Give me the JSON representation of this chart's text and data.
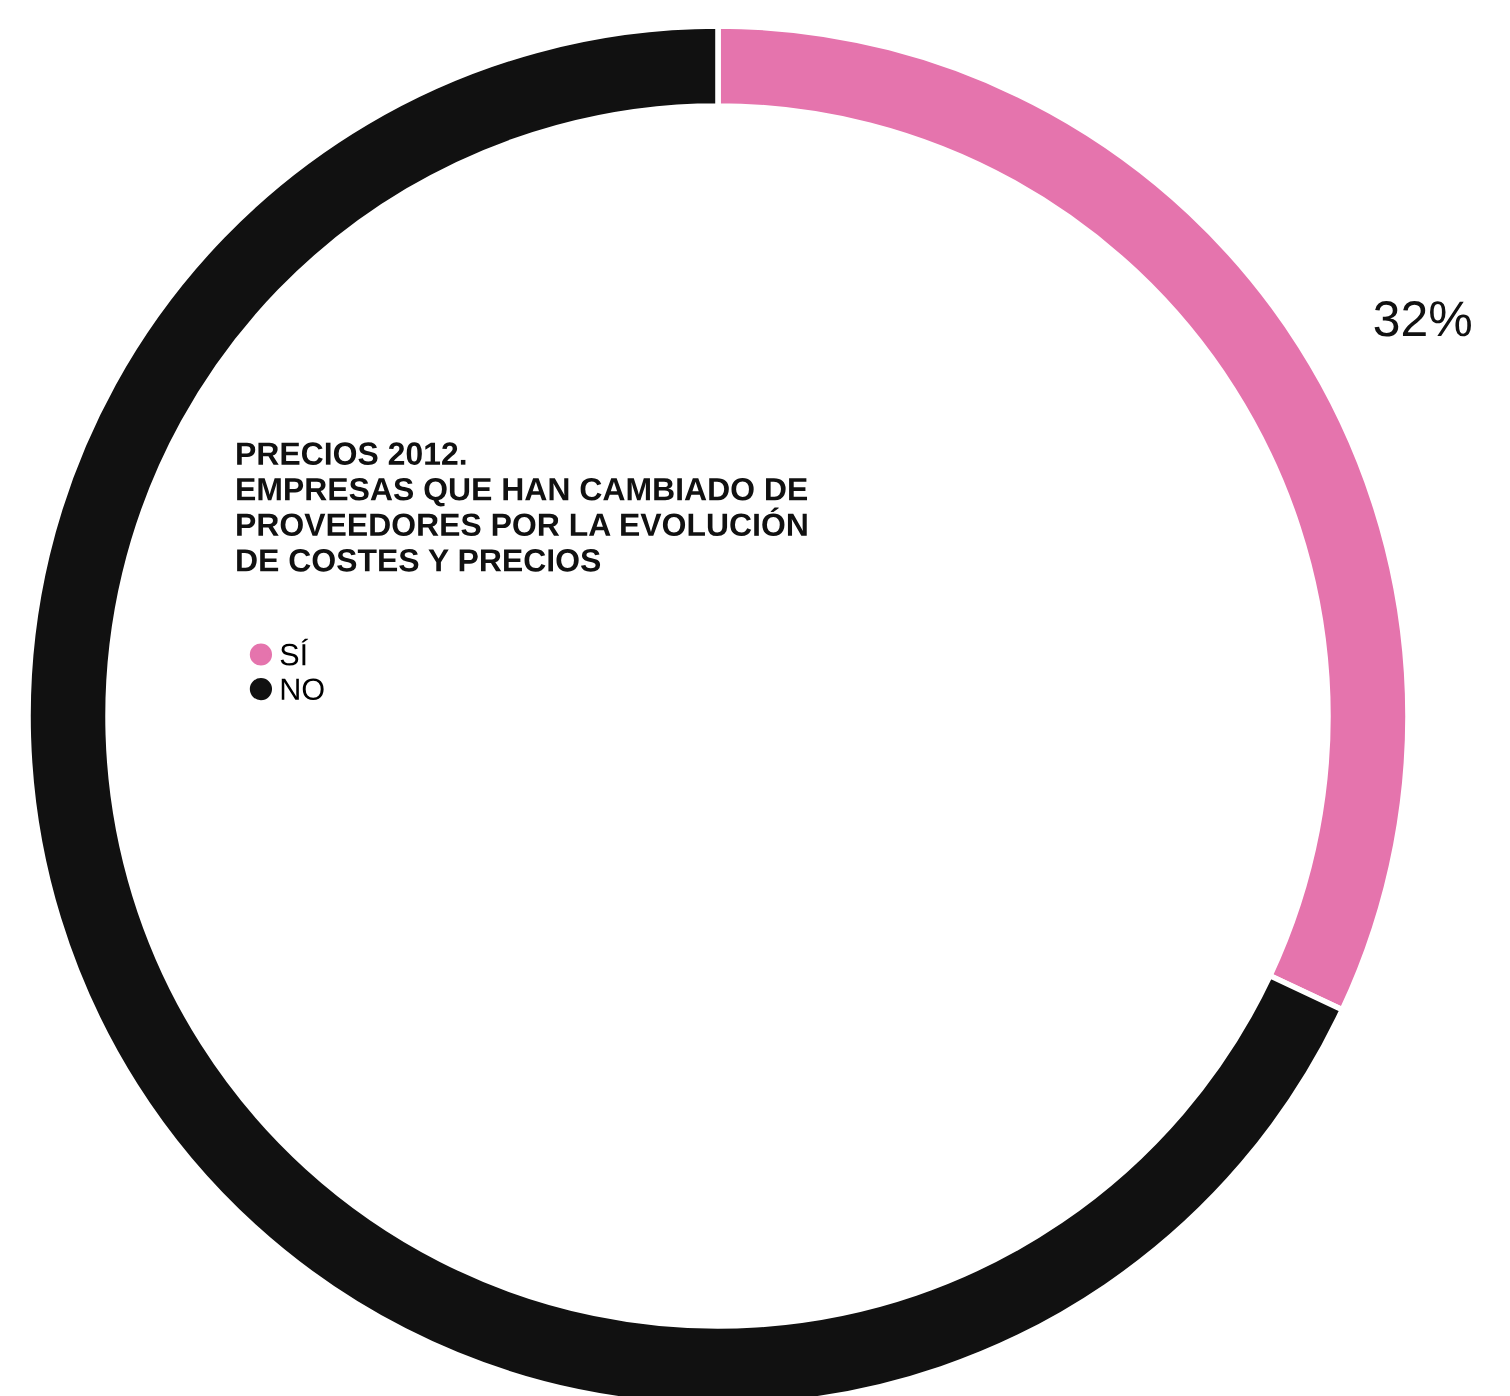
{
  "chart_data": {
    "type": "donut",
    "title": "PRECIOS 2012.\nEMPRESAS QUE HAN CAMBIADO DE\nPROVEEDORES POR LA EVOLUCIÓN\nDE COSTES Y PRECIOS",
    "categories": [
      "SÍ",
      "NO"
    ],
    "values": [
      32,
      68
    ],
    "colors": [
      "#e574ad",
      "#111111"
    ],
    "value_labels": [
      "32%",
      null
    ],
    "legend": "center left"
  }
}
